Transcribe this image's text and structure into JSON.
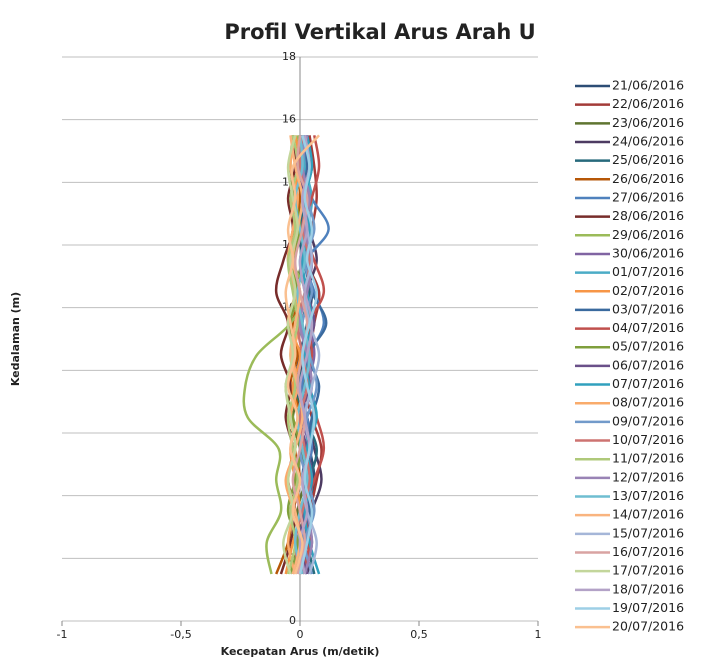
{
  "chart_data": {
    "type": "line",
    "title": "Profil Vertikal Arus Arah U",
    "x_label": "Kecepatan Arus (m/detik)",
    "y_label": "Kedalaman (m)",
    "xlim": [
      -1,
      1
    ],
    "xticks": [
      -1,
      {
        "value": -0.5,
        "label": "-0,5"
      },
      0,
      {
        "value": 0.5,
        "label": "0,5"
      },
      1
    ],
    "ylim": [
      0,
      18
    ],
    "yticks": [
      0,
      2,
      4,
      6,
      8,
      10,
      12,
      14,
      16,
      18
    ],
    "grid": true,
    "legend": "right",
    "y": [
      1.5,
      2.5,
      3.5,
      4.5,
      5.5,
      6.5,
      7.5,
      8.5,
      9.5,
      10.5,
      11.5,
      12.5,
      13.5,
      14.5,
      15.5
    ],
    "series": [
      {
        "name": "21/06/2016",
        "color": "#2c4d75",
        "values": [
          0.02,
          0.05,
          0.03,
          0.06,
          0.04,
          0.01,
          -0.02,
          0.0,
          0.03,
          0.05,
          0.02,
          -0.01,
          0.03,
          0.01,
          0.02
        ]
      },
      {
        "name": "22/06/2016",
        "color": "#a33b38",
        "values": [
          -0.03,
          0.0,
          0.04,
          0.07,
          0.09,
          0.05,
          0.02,
          0.04,
          0.06,
          0.08,
          0.03,
          0.05,
          0.07,
          0.06,
          0.04
        ]
      },
      {
        "name": "23/06/2016",
        "color": "#5f7530",
        "values": [
          -0.02,
          0.01,
          -0.01,
          0.02,
          0.0,
          -0.03,
          0.01,
          0.03,
          0.0,
          -0.02,
          0.01,
          0.03,
          0.02,
          0.0,
          0.01
        ]
      },
      {
        "name": "24/06/2016",
        "color": "#4d3b62",
        "values": [
          0.04,
          0.02,
          0.05,
          0.09,
          0.06,
          0.03,
          0.0,
          0.02,
          0.05,
          0.03,
          0.07,
          0.04,
          0.02,
          0.05,
          0.03
        ]
      },
      {
        "name": "25/06/2016",
        "color": "#276a7c",
        "values": [
          0.06,
          0.03,
          0.01,
          0.04,
          0.07,
          0.02,
          -0.01,
          0.03,
          0.01,
          0.04,
          0.02,
          0.0,
          0.03,
          0.01,
          0.02
        ]
      },
      {
        "name": "26/06/2016",
        "color": "#b65708",
        "values": [
          -0.1,
          -0.05,
          -0.03,
          0.0,
          -0.02,
          0.01,
          -0.04,
          -0.01,
          -0.03,
          0.0,
          -0.05,
          -0.02,
          0.0,
          -0.01,
          0.0
        ]
      },
      {
        "name": "27/06/2016",
        "color": "#4f81bd",
        "values": [
          0.03,
          0.01,
          0.04,
          0.02,
          0.05,
          0.03,
          0.01,
          0.04,
          0.1,
          0.06,
          0.03,
          0.12,
          0.05,
          0.02,
          0.03
        ]
      },
      {
        "name": "28/06/2016",
        "color": "#772c2a",
        "values": [
          -0.08,
          -0.04,
          -0.02,
          -0.05,
          -0.03,
          -0.06,
          -0.04,
          -0.08,
          -0.05,
          -0.1,
          -0.07,
          -0.03,
          -0.05,
          -0.02,
          -0.03
        ]
      },
      {
        "name": "29/06/2016",
        "color": "#9bbb59",
        "values": [
          -0.12,
          -0.14,
          -0.08,
          -0.1,
          -0.09,
          -0.22,
          -0.23,
          -0.18,
          -0.04,
          0.02,
          -0.03,
          0.0,
          -0.02,
          0.01,
          -0.01
        ]
      },
      {
        "name": "30/06/2016",
        "color": "#8064a2",
        "values": [
          0.0,
          0.03,
          0.05,
          0.02,
          0.04,
          0.01,
          0.03,
          0.06,
          0.04,
          0.02,
          0.05,
          0.03,
          0.01,
          0.02,
          0.0
        ]
      },
      {
        "name": "01/07/2016",
        "color": "#4bacc6",
        "values": [
          0.02,
          -0.01,
          0.03,
          0.05,
          0.02,
          0.06,
          0.03,
          0.01,
          0.04,
          0.02,
          0.0,
          0.03,
          0.05,
          0.02,
          0.01
        ]
      },
      {
        "name": "02/07/2016",
        "color": "#f79646",
        "values": [
          -0.06,
          -0.03,
          0.0,
          -0.02,
          -0.04,
          -0.01,
          -0.03,
          0.0,
          -0.05,
          -0.02,
          -0.04,
          -0.01,
          -0.03,
          0.0,
          -0.02
        ]
      },
      {
        "name": "03/07/2016",
        "color": "#3a6a9e",
        "values": [
          0.05,
          0.02,
          0.04,
          0.01,
          0.03,
          0.05,
          0.08,
          0.04,
          0.11,
          0.05,
          0.02,
          0.04,
          0.01,
          0.03,
          0.02
        ]
      },
      {
        "name": "04/07/2016",
        "color": "#c0504d",
        "values": [
          0.01,
          0.04,
          0.02,
          0.06,
          0.1,
          0.07,
          0.03,
          0.05,
          0.04,
          0.1,
          0.06,
          0.02,
          0.05,
          0.08,
          0.06
        ]
      },
      {
        "name": "05/07/2016",
        "color": "#7f9f3c",
        "values": [
          -0.04,
          -0.01,
          -0.05,
          -0.02,
          0.0,
          -0.03,
          -0.06,
          -0.02,
          -0.04,
          -0.01,
          -0.03,
          0.0,
          -0.02,
          -0.04,
          -0.03
        ]
      },
      {
        "name": "06/07/2016",
        "color": "#6a5089",
        "values": [
          0.03,
          0.0,
          0.02,
          0.05,
          0.03,
          0.0,
          0.04,
          0.02,
          0.06,
          0.03,
          0.01,
          0.04,
          0.02,
          0.0,
          0.01
        ]
      },
      {
        "name": "07/07/2016",
        "color": "#31a0bd",
        "values": [
          0.08,
          0.04,
          0.02,
          0.05,
          0.03,
          0.07,
          0.04,
          0.02,
          0.05,
          0.03,
          0.01,
          0.04,
          0.02,
          0.05,
          0.03
        ]
      },
      {
        "name": "08/07/2016",
        "color": "#f9ab6b",
        "values": [
          -0.02,
          -0.05,
          -0.03,
          -0.06,
          -0.02,
          -0.04,
          -0.01,
          -0.03,
          0.0,
          -0.02,
          -0.05,
          -0.03,
          -0.01,
          -0.04,
          -0.02
        ]
      },
      {
        "name": "09/07/2016",
        "color": "#729aca",
        "values": [
          0.05,
          0.02,
          0.06,
          0.03,
          0.0,
          0.03,
          0.07,
          0.04,
          0.01,
          0.05,
          0.02,
          0.06,
          0.03,
          0.01,
          0.02
        ]
      },
      {
        "name": "10/07/2016",
        "color": "#cd7371",
        "values": [
          0.0,
          -0.02,
          0.01,
          0.04,
          0.02,
          0.0,
          0.03,
          0.01,
          -0.01,
          0.02,
          0.04,
          0.01,
          0.03,
          0.0,
          0.01
        ]
      },
      {
        "name": "11/07/2016",
        "color": "#afc97a",
        "values": [
          -0.05,
          -0.02,
          -0.04,
          -0.01,
          -0.03,
          -0.05,
          -0.02,
          -0.04,
          -0.01,
          -0.03,
          -0.05,
          -0.02,
          -0.04,
          -0.01,
          -0.03
        ]
      },
      {
        "name": "12/07/2016",
        "color": "#9983b5",
        "values": [
          0.02,
          0.05,
          0.03,
          0.01,
          0.04,
          0.02,
          0.05,
          0.03,
          0.0,
          0.03,
          0.05,
          0.02,
          0.04,
          0.01,
          0.03
        ]
      },
      {
        "name": "13/07/2016",
        "color": "#6fbdd1",
        "values": [
          0.01,
          -0.02,
          0.0,
          0.03,
          0.01,
          -0.01,
          0.02,
          0.04,
          0.01,
          -0.01,
          0.02,
          0.0,
          -0.02,
          0.01,
          0.0
        ]
      },
      {
        "name": "14/07/2016",
        "color": "#f9b47f",
        "values": [
          -0.03,
          0.0,
          -0.02,
          -0.05,
          -0.02,
          0.01,
          -0.01,
          -0.04,
          -0.02,
          0.0,
          -0.03,
          -0.01,
          0.01,
          -0.02,
          -0.04
        ]
      },
      {
        "name": "15/07/2016",
        "color": "#a5b6d8",
        "values": [
          0.04,
          0.07,
          0.03,
          0.01,
          0.04,
          0.02,
          0.05,
          0.08,
          0.04,
          0.02,
          0.05,
          0.03,
          0.01,
          0.04,
          0.02
        ]
      },
      {
        "name": "16/07/2016",
        "color": "#d9a3a2",
        "values": [
          -0.01,
          0.02,
          0.0,
          -0.03,
          0.0,
          0.02,
          -0.01,
          0.01,
          0.03,
          0.0,
          -0.02,
          0.01,
          0.03,
          -0.01,
          0.0
        ]
      },
      {
        "name": "17/07/2016",
        "color": "#c3d69b",
        "values": [
          -0.04,
          -0.07,
          -0.03,
          -0.05,
          -0.02,
          -0.04,
          -0.06,
          -0.03,
          -0.05,
          -0.02,
          -0.04,
          -0.01,
          -0.03,
          -0.05,
          -0.02
        ]
      },
      {
        "name": "18/07/2016",
        "color": "#b3a2c7",
        "values": [
          0.02,
          0.0,
          0.03,
          0.01,
          0.04,
          0.02,
          0.0,
          0.03,
          0.05,
          0.02,
          0.0,
          0.03,
          0.01,
          0.04,
          0.02
        ]
      },
      {
        "name": "19/07/2016",
        "color": "#9dcfe6",
        "values": [
          0.0,
          0.03,
          0.05,
          0.02,
          0.04,
          0.06,
          0.03,
          0.01,
          0.04,
          0.07,
          0.03,
          0.05,
          0.02,
          0.04,
          0.01
        ]
      },
      {
        "name": "20/07/2016",
        "color": "#fac090",
        "values": [
          -0.02,
          0.01,
          -0.03,
          0.0,
          -0.04,
          -0.01,
          -0.05,
          -0.02,
          -0.04,
          -0.06,
          -0.03,
          -0.05,
          -0.02,
          -0.03,
          0.08
        ]
      }
    ]
  }
}
